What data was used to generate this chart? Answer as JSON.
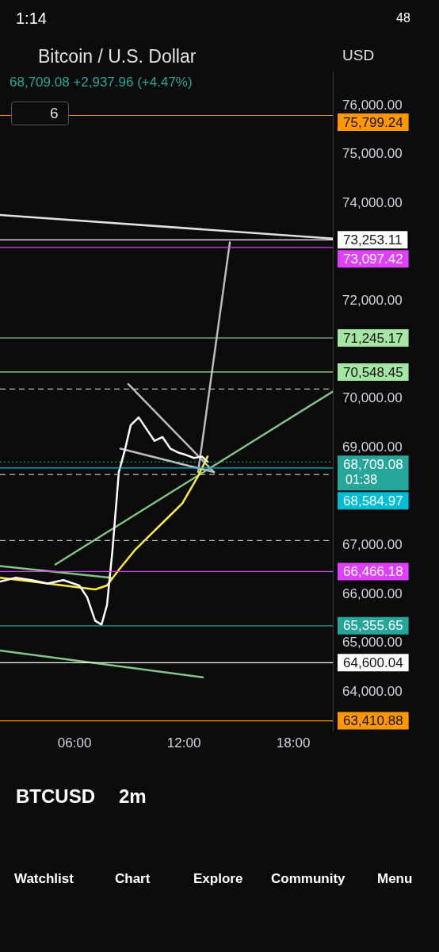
{
  "chart_data": {
    "type": "line",
    "title": "Bitcoin / U.S. Dollar",
    "subtitle": "68,709.08 +2,937.96 (+4.47%)",
    "series": [
      {
        "color": "#ffffff",
        "x": [
          1.91,
          2.78,
          3.65,
          4.52,
          5.39,
          6.26,
          6.69,
          7.13,
          7.48,
          7.78,
          8.08,
          8.43,
          8.78,
          9.08,
          9.52,
          9.95,
          10.39,
          10.82,
          11.26,
          11.69,
          12.13,
          12.56,
          12.99,
          13.3
        ],
        "values": [
          66260,
          66340,
          66290,
          66220,
          66290,
          66180,
          65940,
          65460,
          65380,
          65780,
          66900,
          68500,
          68980,
          69460,
          69620,
          69380,
          69140,
          69220,
          68980,
          68900,
          68850,
          68790,
          68820,
          68710
        ]
      },
      {
        "color": "#ffeb3b",
        "x": [
          1.91,
          3.65,
          5.39,
          7.13,
          7.78,
          8.43,
          9.3,
          10.17,
          11.04,
          11.91,
          12.78,
          13.3
        ],
        "values": [
          66340,
          66260,
          66180,
          66100,
          66180,
          66500,
          66900,
          67220,
          67540,
          67860,
          68420,
          68820
        ]
      },
      {
        "color": "#81c784",
        "x": [
          4.95,
          20.17
        ],
        "values": [
          66610,
          70150
        ]
      },
      {
        "color": "#e0e0e0",
        "x": [
          1.91,
          20.17
        ],
        "values": [
          73760,
          73280
        ]
      },
      {
        "color": "#81c784",
        "x": [
          1.91,
          13.04
        ],
        "values": [
          64850,
          64300
        ]
      },
      {
        "color": "#81c784",
        "x": [
          1.91,
          7.99
        ],
        "values": [
          66580,
          66340
        ]
      },
      {
        "color": "#bdbdbd",
        "x": [
          12.78,
          14.52
        ],
        "values": [
          68500,
          73200
        ]
      },
      {
        "color": "#bdbdbd",
        "x": [
          8.95,
          13.65
        ],
        "values": [
          70300,
          68500
        ]
      },
      {
        "color": "#bdbdbd",
        "x": [
          8.52,
          13.65
        ],
        "values": [
          68980,
          68500
        ]
      }
    ],
    "xlim": [
      1.91,
      20.17
    ],
    "xticks": [
      {
        "value": 6,
        "label": "06:00"
      },
      {
        "value": 12,
        "label": "12:00"
      },
      {
        "value": 18,
        "label": "18:00"
      }
    ],
    "ylim": [
      63200,
      76700
    ],
    "yticks": [
      {
        "value": 64000,
        "label": "64,000.00"
      },
      {
        "value": 65000,
        "label": "65,000.00"
      },
      {
        "value": 66000,
        "label": "66,000.00"
      },
      {
        "value": 67000,
        "label": "67,000.00"
      },
      {
        "value": 69000,
        "label": "69,000.00"
      },
      {
        "value": 70000,
        "label": "70,000.00"
      },
      {
        "value": 72000,
        "label": "72,000.00"
      },
      {
        "value": 74000,
        "label": "74,000.00"
      },
      {
        "value": 75000,
        "label": "75,000.00"
      },
      {
        "value": 76000,
        "label": "76,000.00"
      }
    ],
    "ref_lines": [
      {
        "axis": "y",
        "value": 75799.24,
        "label": "75,799.24",
        "color": "#ff9800"
      },
      {
        "axis": "y",
        "value": 73253.11,
        "label": "73,253.11",
        "color": "#ffffff"
      },
      {
        "axis": "y",
        "value": 73097.42,
        "label": "73,097.42",
        "color": "#e040fb"
      },
      {
        "axis": "y",
        "value": 71245.17,
        "label": "71,245.17",
        "color": "#a5e6a5"
      },
      {
        "axis": "y",
        "value": 70548.45,
        "label": "70,548.45",
        "color": "#a5e6a5"
      },
      {
        "axis": "y",
        "value": 70200,
        "color": "#bdbdbd",
        "line_style": "dashed"
      },
      {
        "axis": "y",
        "value": 68709.08,
        "label": "68,709.08",
        "color": "#26a69a",
        "line_style": "dotted"
      },
      {
        "axis": "y",
        "value": 68450,
        "color": "#bdbdbd",
        "line_style": "dashed"
      },
      {
        "axis": "y",
        "value": 68584.97,
        "label": "68,584.97",
        "color": "#00bcd4"
      },
      {
        "axis": "y",
        "value": 67100,
        "color": "#bdbdbd",
        "line_style": "dashed"
      },
      {
        "axis": "y",
        "value": 66466.18,
        "label": "66,466.18",
        "color": "#e040fb"
      },
      {
        "axis": "y",
        "value": 65355.65,
        "label": "65,355.65",
        "color": "#26a69a"
      },
      {
        "axis": "y",
        "value": 64600.04,
        "label": "64,600.04",
        "color": "#ffffff"
      },
      {
        "axis": "y",
        "value": 63410.88,
        "label": "63,410.88",
        "color": "#ff9800"
      }
    ],
    "annotations": [
      "1:14",
      "48",
      "USD",
      "6",
      "01:38",
      "BTCUSD",
      "2m",
      "Watchlist",
      "Chart",
      "Explore",
      "Community",
      "Menu"
    ],
    "grid": false,
    "legend": false
  }
}
